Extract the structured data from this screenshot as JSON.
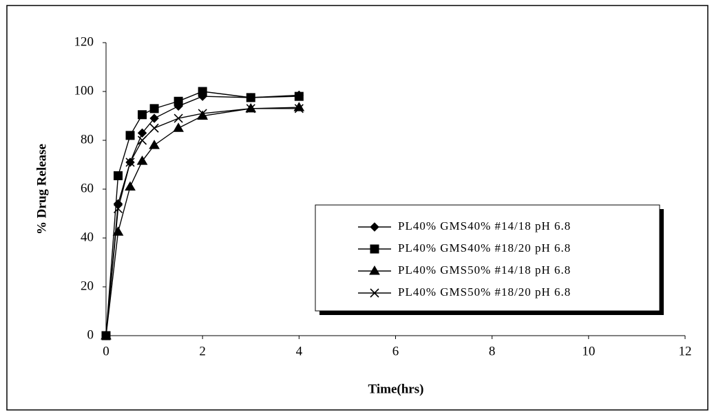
{
  "chart_data": {
    "type": "line",
    "xlabel": "Time(hrs)",
    "ylabel": "% Drug Release",
    "x": [
      0,
      0.25,
      0.5,
      0.75,
      1,
      1.5,
      2,
      3,
      4
    ],
    "xlim": [
      0,
      12
    ],
    "xticks": [
      0,
      2,
      4,
      6,
      8,
      10,
      12
    ],
    "ylim": [
      0,
      120
    ],
    "yticks": [
      0,
      20,
      40,
      60,
      80,
      100,
      120
    ],
    "grid": false,
    "legend": "right",
    "series": [
      {
        "name": "PL40% GMS40% #14/18 pH 6.8",
        "color": "#000000",
        "marker": "diamond",
        "values": [
          0,
          54,
          71,
          83,
          89,
          94,
          98,
          97.5,
          98.5
        ]
      },
      {
        "name": "PL40% GMS40% #18/20 pH 6.8",
        "color": "#000000",
        "marker": "square",
        "values": [
          0,
          65.5,
          82,
          90.5,
          93,
          96,
          100,
          97.5,
          98
        ]
      },
      {
        "name": "PL40% GMS50% #14/18 pH 6.8",
        "color": "#000000",
        "marker": "triangle",
        "values": [
          0,
          42.5,
          61,
          71.5,
          78,
          85,
          90,
          93,
          93.5
        ]
      },
      {
        "name": "PL40% GMS50% #18/20 pH 6.8",
        "color": "#000000",
        "marker": "x",
        "values": [
          0,
          52,
          71,
          80,
          85,
          89,
          91,
          93,
          93
        ]
      }
    ]
  }
}
